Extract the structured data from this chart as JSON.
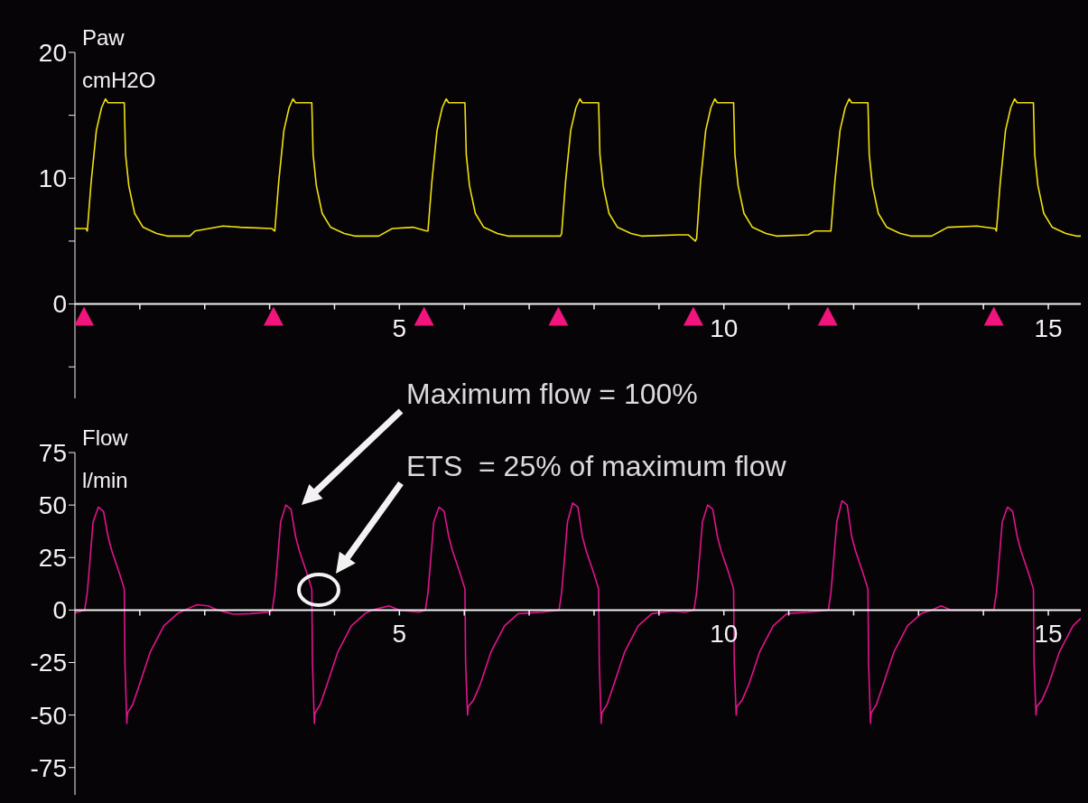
{
  "chart_data": [
    {
      "type": "line",
      "ylabel": "Paw\ncmH2O",
      "xlim": [
        0,
        15.5
      ],
      "ylim": [
        -7.5,
        20
      ],
      "xticks": [
        {
          "value": 1,
          "label": null
        },
        {
          "value": 2,
          "label": null
        },
        {
          "value": 3,
          "label": null
        },
        {
          "value": 4,
          "label": null
        },
        5,
        {
          "value": 6,
          "label": null
        },
        {
          "value": 7,
          "label": null
        },
        {
          "value": 8,
          "label": null
        },
        {
          "value": 9,
          "label": null
        },
        10,
        {
          "value": 11,
          "label": null
        },
        {
          "value": 12,
          "label": null
        },
        {
          "value": 13,
          "label": null
        },
        {
          "value": 14,
          "label": null
        },
        15
      ],
      "yticks": [
        {
          "value": -5,
          "label": null
        },
        0,
        {
          "value": 5,
          "label": null
        },
        10,
        {
          "value": 15,
          "label": null
        },
        20
      ],
      "series": [
        {
          "type": "line",
          "color": "#f0e010",
          "x": [
            0,
            0.17,
            0.19,
            0.25,
            0.33,
            0.41,
            0.47,
            0.51,
            0.76,
            0.78,
            0.83,
            0.92,
            1.05,
            1.26,
            1.42,
            1.77,
            1.85,
            2.28,
            2.55,
            3.03,
            3.08,
            3.14,
            3.22,
            3.3,
            3.36,
            3.4,
            3.65,
            3.67,
            3.72,
            3.81,
            3.94,
            4.15,
            4.31,
            4.68,
            4.89,
            5.21,
            5.42,
            5.44,
            5.5,
            5.58,
            5.66,
            5.72,
            5.76,
            6.01,
            6.03,
            6.08,
            6.17,
            6.3,
            6.51,
            6.67,
            7.0,
            7.48,
            7.5,
            7.56,
            7.64,
            7.72,
            7.78,
            7.82,
            8.07,
            8.09,
            8.14,
            8.23,
            8.36,
            8.57,
            8.73,
            9.3,
            9.45,
            9.56,
            9.58,
            9.64,
            9.72,
            9.8,
            9.86,
            9.9,
            10.15,
            10.17,
            10.22,
            10.31,
            10.44,
            10.65,
            10.81,
            11.3,
            11.4,
            11.63,
            11.65,
            11.71,
            11.79,
            11.87,
            11.93,
            11.97,
            12.22,
            12.24,
            12.29,
            12.38,
            12.51,
            12.72,
            12.88,
            13.2,
            13.45,
            13.9,
            14.18,
            14.2,
            14.26,
            14.34,
            14.42,
            14.48,
            14.52,
            14.77,
            14.79,
            14.84,
            14.93,
            15.06,
            15.27,
            15.43,
            15.5
          ],
          "values": [
            6.0,
            6.0,
            5.8,
            9.7,
            13.8,
            15.6,
            16.3,
            16.0,
            16.0,
            11.9,
            9.4,
            7.2,
            6.1,
            5.6,
            5.4,
            5.4,
            5.8,
            6.2,
            6.1,
            6.0,
            5.8,
            9.7,
            13.8,
            15.6,
            16.3,
            16.0,
            16.0,
            11.9,
            9.4,
            7.2,
            6.1,
            5.6,
            5.4,
            5.4,
            6.0,
            6.1,
            5.8,
            5.8,
            9.7,
            13.8,
            15.6,
            16.3,
            16.0,
            16.0,
            11.9,
            9.4,
            7.2,
            6.1,
            5.6,
            5.4,
            5.4,
            5.4,
            5.6,
            9.7,
            13.8,
            15.6,
            16.3,
            16.0,
            16.0,
            11.9,
            9.4,
            7.2,
            6.1,
            5.6,
            5.4,
            5.5,
            5.5,
            5.0,
            5.2,
            9.7,
            13.8,
            15.6,
            16.3,
            16.0,
            16.0,
            11.9,
            9.4,
            7.2,
            6.1,
            5.6,
            5.4,
            5.5,
            5.8,
            5.8,
            5.8,
            9.7,
            13.8,
            15.6,
            16.3,
            16.0,
            16.0,
            11.9,
            9.4,
            7.2,
            6.1,
            5.6,
            5.4,
            5.4,
            6.1,
            6.2,
            6.0,
            5.8,
            9.7,
            13.8,
            15.6,
            16.3,
            16.0,
            16.0,
            11.9,
            9.4,
            7.2,
            6.1,
            5.6,
            5.4,
            5.4
          ]
        },
        {
          "type": "scatter",
          "marker": "triangle",
          "color": "#f0147c",
          "x": [
            0.14,
            3.06,
            5.38,
            7.45,
            9.53,
            11.6,
            14.16
          ],
          "values": [
            -1,
            -1,
            -1,
            -1,
            -1,
            -1,
            -1
          ]
        }
      ]
    },
    {
      "type": "line",
      "ylabel": "Flow\nl/min",
      "xlim": [
        0,
        15.5
      ],
      "ylim": [
        -88,
        75
      ],
      "xticks": [
        {
          "value": 1,
          "label": null
        },
        {
          "value": 2,
          "label": null
        },
        {
          "value": 3,
          "label": null
        },
        {
          "value": 4,
          "label": null
        },
        5,
        {
          "value": 6,
          "label": null
        },
        {
          "value": 7,
          "label": null
        },
        {
          "value": 8,
          "label": null
        },
        {
          "value": 9,
          "label": null
        },
        10,
        {
          "value": 11,
          "label": null
        },
        {
          "value": 12,
          "label": null
        },
        {
          "value": 13,
          "label": null
        },
        {
          "value": 14,
          "label": null
        },
        15
      ],
      "yticks": [
        -75,
        -50,
        -25,
        0,
        25,
        50,
        75
      ],
      "annotations": [
        "Maximum flow = 100%",
        "ETS  = 25% of maximum flow"
      ],
      "series": [
        {
          "type": "line",
          "color": "#e0148c",
          "x": [
            0,
            0.15,
            0.19,
            0.23,
            0.28,
            0.36,
            0.44,
            0.51,
            0.57,
            0.68,
            0.76,
            0.77,
            0.8,
            0.81,
            0.89,
            1.0,
            1.16,
            1.37,
            1.58,
            1.69,
            1.88,
            2.05,
            2.2,
            2.44,
            2.7,
            3.0,
            3.04,
            3.08,
            3.12,
            3.17,
            3.25,
            3.33,
            3.4,
            3.46,
            3.57,
            3.65,
            3.66,
            3.69,
            3.7,
            3.78,
            3.89,
            4.05,
            4.26,
            4.47,
            4.58,
            4.84,
            5.0,
            5.3,
            5.4,
            5.44,
            5.48,
            5.53,
            5.61,
            5.69,
            5.76,
            5.82,
            5.93,
            6.01,
            6.02,
            6.05,
            6.06,
            6.14,
            6.25,
            6.41,
            6.62,
            6.83,
            7.2,
            7.46,
            7.5,
            7.54,
            7.59,
            7.67,
            7.75,
            7.82,
            7.88,
            7.99,
            8.07,
            8.08,
            8.11,
            8.12,
            8.2,
            8.31,
            8.47,
            8.68,
            8.89,
            9.2,
            9.4,
            9.54,
            9.58,
            9.62,
            9.67,
            9.75,
            9.83,
            9.9,
            9.96,
            10.07,
            10.15,
            10.16,
            10.19,
            10.2,
            10.28,
            10.39,
            10.55,
            10.76,
            10.97,
            11.3,
            11.61,
            11.65,
            11.69,
            11.74,
            11.82,
            11.9,
            11.97,
            12.03,
            12.14,
            12.22,
            12.23,
            12.26,
            12.27,
            12.35,
            12.46,
            12.62,
            12.83,
            13.04,
            13.2,
            13.35,
            13.5,
            14.0,
            14.16,
            14.2,
            14.24,
            14.29,
            14.37,
            14.45,
            14.52,
            14.58,
            14.69,
            14.77,
            14.78,
            14.81,
            14.82,
            14.9,
            15.01,
            15.17,
            15.38,
            15.5
          ],
          "values": [
            -1.3,
            0,
            8.3,
            23,
            42,
            49,
            47,
            35,
            28,
            18,
            10,
            -25,
            -54,
            -49,
            -45,
            -35,
            -20,
            -7.5,
            -1.7,
            0,
            2.5,
            2,
            0,
            -2,
            -1.7,
            -1,
            0,
            8.3,
            23,
            42,
            50,
            48,
            35,
            28,
            18,
            10,
            -25,
            -54,
            -49,
            -45,
            -35,
            -20,
            -7.5,
            -1.7,
            0,
            2,
            0,
            -1,
            0,
            8.3,
            23,
            42,
            49,
            47,
            35,
            28,
            18,
            10,
            -25,
            -50,
            -46,
            -43,
            -35,
            -20,
            -7.5,
            -1.7,
            -1,
            0,
            8.3,
            23,
            42,
            51,
            49,
            35,
            28,
            18,
            10,
            -25,
            -54,
            -49,
            -45,
            -35,
            -20,
            -7.5,
            -1.7,
            -0.5,
            -1,
            0,
            8.3,
            23,
            42,
            50,
            48,
            35,
            28,
            18,
            10,
            -25,
            -50,
            -46,
            -43,
            -35,
            -20,
            -7.5,
            -1.7,
            -1,
            0,
            8.3,
            23,
            42,
            52,
            50,
            35,
            28,
            18,
            10,
            -25,
            -54,
            -49,
            -45,
            -35,
            -20,
            -7.5,
            -1.7,
            0,
            2,
            0,
            0,
            0,
            8.3,
            23,
            42,
            49,
            47,
            35,
            28,
            18,
            10,
            -25,
            -50,
            -46,
            -43,
            -35,
            -20,
            -7.5,
            -4
          ]
        }
      ]
    }
  ]
}
